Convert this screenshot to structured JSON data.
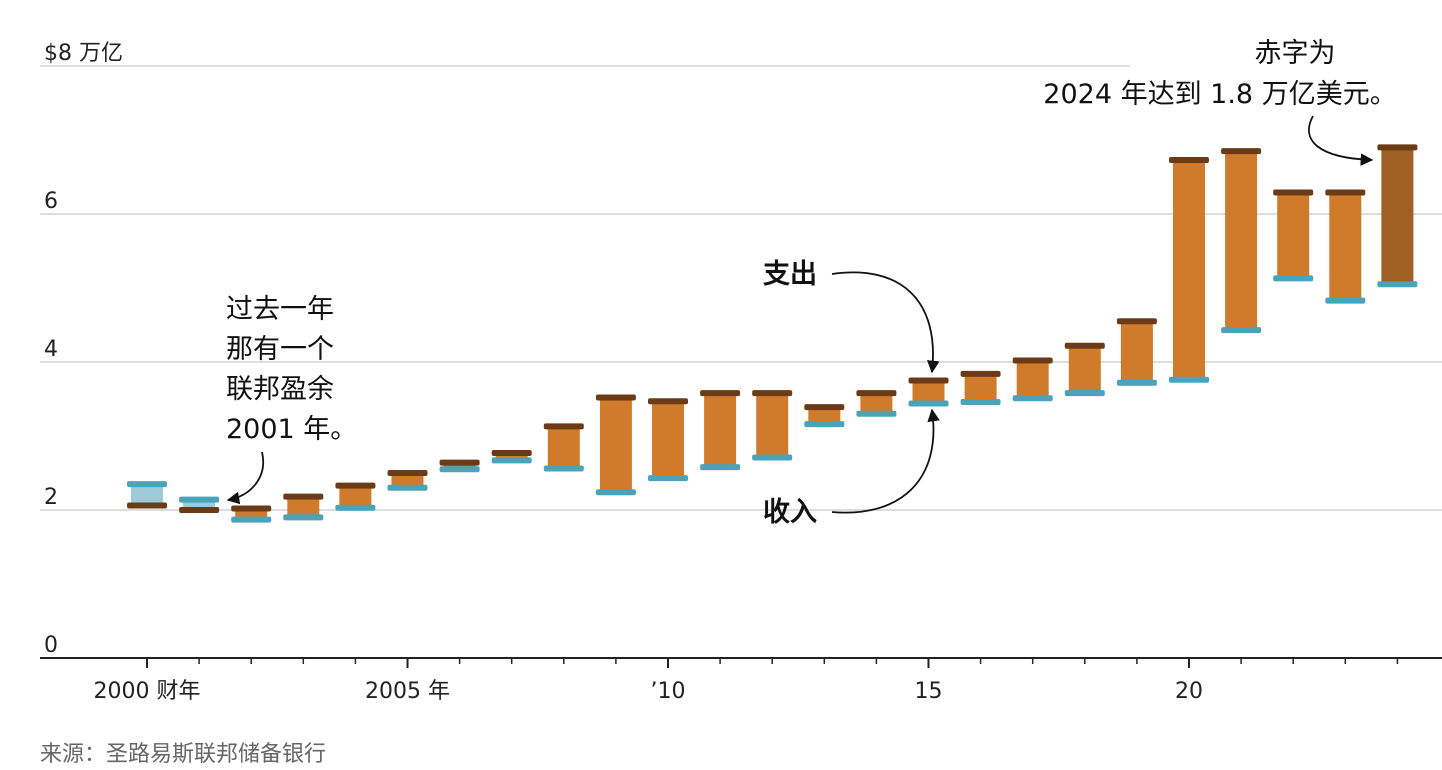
{
  "chart_data": {
    "type": "bar",
    "y_unit_label": "$8 万亿",
    "ylim": [
      0,
      8
    ],
    "y_ticks": [
      {
        "value": 0,
        "label": "0"
      },
      {
        "value": 2,
        "label": "2"
      },
      {
        "value": 4,
        "label": "4"
      },
      {
        "value": 6,
        "label": "6"
      },
      {
        "value": 8,
        "label": "$8 万亿"
      }
    ],
    "x_ticks": [
      {
        "value": 2000,
        "label": "2000 财年"
      },
      {
        "value": 2005,
        "label": "2005 年"
      },
      {
        "value": 2010,
        "label": "’10"
      },
      {
        "value": 2015,
        "label": "15"
      },
      {
        "value": 2020,
        "label": "20"
      }
    ],
    "grid": true,
    "colors": {
      "spending": "#6b3a17",
      "revenue": "#4aa3b8",
      "deficit_bar": "#d07a2c",
      "latest_bar": "#a05f24",
      "surplus_bar": "#9ecbd8",
      "grid": "#dddddd",
      "axis": "#222222"
    },
    "series": [
      {
        "name": "支出",
        "x": [
          2000,
          2001,
          2002,
          2003,
          2004,
          2005,
          2006,
          2007,
          2008,
          2009,
          2010,
          2011,
          2012,
          2013,
          2014,
          2015,
          2016,
          2017,
          2018,
          2019,
          2020,
          2021,
          2022,
          2023,
          2024
        ],
        "values": [
          2.06,
          2.0,
          2.02,
          2.18,
          2.33,
          2.5,
          2.64,
          2.77,
          3.13,
          3.52,
          3.47,
          3.58,
          3.58,
          3.39,
          3.58,
          3.75,
          3.84,
          4.02,
          4.22,
          4.55,
          6.73,
          6.85,
          6.29,
          6.29,
          6.9
        ]
      },
      {
        "name": "收入",
        "x": [
          2000,
          2001,
          2002,
          2003,
          2004,
          2005,
          2006,
          2007,
          2008,
          2009,
          2010,
          2011,
          2012,
          2013,
          2014,
          2015,
          2016,
          2017,
          2018,
          2019,
          2020,
          2021,
          2022,
          2023,
          2024
        ],
        "values": [
          2.35,
          2.14,
          1.87,
          1.9,
          2.03,
          2.3,
          2.55,
          2.67,
          2.56,
          2.24,
          2.43,
          2.58,
          2.71,
          3.16,
          3.3,
          3.44,
          3.46,
          3.51,
          3.58,
          3.72,
          3.76,
          4.43,
          5.13,
          4.83,
          5.05
        ]
      }
    ],
    "annotations": [
      {
        "label": "过去一年\n那有一个\n联邦盈余\n2001 年。",
        "x": 2001
      },
      {
        "label": "支出",
        "x": 2015
      },
      {
        "label": "收入",
        "x": 2015
      },
      {
        "label": "赤字为\n2024 年达到 1.8 万亿美元。",
        "x": 2024
      }
    ]
  },
  "source": "来源：圣路易斯联邦储备银行"
}
